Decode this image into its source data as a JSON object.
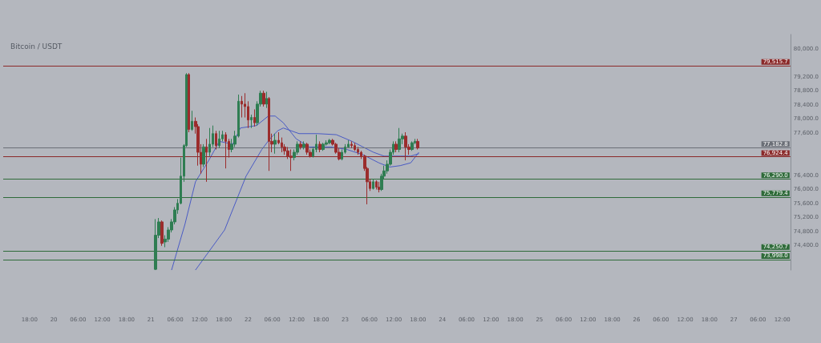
{
  "chart_data": {
    "type": "candlestick",
    "title": "Bitcoin / USDT",
    "x": [
      "--08-21T01:06",
      "--08-21T01:54",
      "--08-21T02:42",
      "--08-21T03:30",
      "--08-21T04:18",
      "--08-21T05:06",
      "--08-21T05:54",
      "--08-21T06:36",
      "--08-21T07:24",
      "--08-21T08:12",
      "--08-21T08:48",
      "--08-21T09:24",
      "--08-21T10:12",
      "--08-21T11:00",
      "--08-21T11:36",
      "--08-21T12:18",
      "--08-21T13:00",
      "--08-21T13:42",
      "--08-21T14:30",
      "--08-21T15:18",
      "--08-21T16:06",
      "--08-21T16:54",
      "--08-21T17:42",
      "--08-21T18:30",
      "--08-21T19:18",
      "--08-21T20:00",
      "--08-21T20:48",
      "--08-21T21:36",
      "--08-21T22:24",
      "--08-21T23:12",
      "--08-22T00:00",
      "--08-22T00:48",
      "--08-22T01:36",
      "--08-22T02:18",
      "--08-22T03:06",
      "--08-22T03:54",
      "--08-22T04:36",
      "--08-22T05:12",
      "--08-22T05:54",
      "--08-22T06:42",
      "--08-22T07:30",
      "--08-22T08:18",
      "--08-22T09:00",
      "--08-22T09:48",
      "--08-22T10:36",
      "--08-22T11:24",
      "--08-22T12:12",
      "--08-22T13:00",
      "--08-22T13:48",
      "--08-22T14:36",
      "--08-22T15:24",
      "--08-22T16:06",
      "--08-22T16:54",
      "--08-22T17:42",
      "--08-22T18:30",
      "--08-22T19:18",
      "--08-22T20:06",
      "--08-22T20:54",
      "--08-22T21:42",
      "--08-22T22:30",
      "--08-22T23:12",
      "--08-23T00:00",
      "--08-23T00:48",
      "--08-23T01:36",
      "--08-23T02:24",
      "--08-23T03:12",
      "--08-23T04:00",
      "--08-23T04:48",
      "--08-23T05:24",
      "--08-23T06:06",
      "--08-23T06:54",
      "--08-23T07:42",
      "--08-23T08:18",
      "--08-23T09:00",
      "--08-23T09:36",
      "--08-23T10:24",
      "--08-23T11:12",
      "--08-23T11:54",
      "--08-23T12:36",
      "--08-23T13:24",
      "--08-23T14:12",
      "--08-23T14:54",
      "--08-23T15:42",
      "--08-23T16:30",
      "--08-23T17:12",
      "--08-23T17:54"
    ],
    "ohlc": [
      [
        73720,
        75150,
        73700,
        74690
      ],
      [
        74690,
        75180,
        74610,
        75070
      ],
      [
        75070,
        75110,
        74390,
        74460
      ],
      [
        74500,
        74690,
        74350,
        74580
      ],
      [
        74580,
        74920,
        74500,
        74840
      ],
      [
        74840,
        75150,
        74770,
        75070
      ],
      [
        75070,
        75490,
        75000,
        75410
      ],
      [
        75410,
        75720,
        75300,
        75600
      ],
      [
        75600,
        76900,
        75570,
        76370
      ],
      [
        76370,
        77280,
        76210,
        77240
      ],
      [
        77240,
        79300,
        77200,
        79260
      ],
      [
        79260,
        79300,
        77620,
        77700
      ],
      [
        77700,
        78230,
        77660,
        77930
      ],
      [
        77930,
        78040,
        77580,
        77780
      ],
      [
        77780,
        77850,
        76670,
        77050
      ],
      [
        77050,
        77280,
        76440,
        76710
      ],
      [
        76710,
        77280,
        76630,
        77200
      ],
      [
        77200,
        77430,
        76210,
        77050
      ],
      [
        77050,
        77740,
        76940,
        77280
      ],
      [
        77280,
        77810,
        77200,
        77580
      ],
      [
        77580,
        77660,
        77130,
        77240
      ],
      [
        77240,
        77660,
        77170,
        77430
      ],
      [
        77430,
        77660,
        77360,
        77550
      ],
      [
        77550,
        77620,
        76590,
        77360
      ],
      [
        77360,
        77430,
        76900,
        77130
      ],
      [
        77130,
        77430,
        77050,
        77280
      ],
      [
        77280,
        77660,
        77200,
        77510
      ],
      [
        77510,
        78690,
        77470,
        78500
      ],
      [
        78500,
        78650,
        78040,
        78420
      ],
      [
        78420,
        78730,
        78040,
        78350
      ],
      [
        78350,
        78500,
        77740,
        77970
      ],
      [
        77970,
        78120,
        77740,
        78040
      ],
      [
        78040,
        78270,
        77780,
        77890
      ],
      [
        77890,
        78500,
        77810,
        78420
      ],
      [
        78420,
        78800,
        78350,
        78730
      ],
      [
        78730,
        78800,
        78350,
        78420
      ],
      [
        78420,
        78770,
        78310,
        78580
      ],
      [
        78580,
        78620,
        76520,
        77360
      ],
      [
        77360,
        77580,
        77050,
        77280
      ],
      [
        77280,
        77580,
        77010,
        77390
      ],
      [
        77390,
        77620,
        77280,
        77320
      ],
      [
        77320,
        77470,
        77050,
        77200
      ],
      [
        77200,
        77280,
        76980,
        77090
      ],
      [
        77090,
        77200,
        76860,
        76940
      ],
      [
        76940,
        77130,
        76520,
        76900
      ],
      [
        76900,
        77130,
        76820,
        77050
      ],
      [
        77050,
        77360,
        76980,
        77280
      ],
      [
        77280,
        77360,
        77130,
        77200
      ],
      [
        77200,
        77360,
        77130,
        77280
      ],
      [
        77280,
        77320,
        76980,
        77050
      ],
      [
        77050,
        77130,
        76900,
        76940
      ],
      [
        76940,
        77200,
        76900,
        77130
      ],
      [
        77130,
        77550,
        77050,
        77280
      ],
      [
        77280,
        77360,
        77050,
        77130
      ],
      [
        77130,
        77320,
        77090,
        77280
      ],
      [
        77280,
        77390,
        77240,
        77320
      ],
      [
        77320,
        77430,
        77280,
        77390
      ],
      [
        77390,
        77430,
        77240,
        77280
      ],
      [
        77280,
        77320,
        77010,
        77050
      ],
      [
        77050,
        77170,
        76820,
        76860
      ],
      [
        76860,
        77130,
        76820,
        77050
      ],
      [
        77050,
        77280,
        77010,
        77200
      ],
      [
        77200,
        77390,
        77200,
        77280
      ],
      [
        77280,
        77360,
        77170,
        77240
      ],
      [
        77240,
        77320,
        77090,
        77130
      ],
      [
        77130,
        77200,
        76980,
        77050
      ],
      [
        77050,
        77090,
        76860,
        76940
      ],
      [
        76940,
        76980,
        76520,
        76590
      ],
      [
        76590,
        76630,
        75570,
        76210
      ],
      [
        76210,
        76290,
        75950,
        76020
      ],
      [
        76020,
        76290,
        75990,
        76210
      ],
      [
        76210,
        76250,
        75990,
        76060
      ],
      [
        76060,
        76210,
        75910,
        75990
      ],
      [
        75990,
        76440,
        75950,
        76370
      ],
      [
        76370,
        76670,
        76290,
        76520
      ],
      [
        76520,
        76820,
        76440,
        76710
      ],
      [
        76710,
        77130,
        76670,
        77050
      ],
      [
        77050,
        77360,
        76980,
        77280
      ],
      [
        77280,
        77360,
        77050,
        77130
      ],
      [
        77130,
        77740,
        77050,
        77430
      ],
      [
        77430,
        77580,
        77280,
        77510
      ],
      [
        77510,
        77620,
        76820,
        77200
      ],
      [
        77200,
        77280,
        76980,
        77130
      ],
      [
        77130,
        77360,
        77090,
        77320
      ],
      [
        77320,
        77430,
        77280,
        77360
      ],
      [
        77360,
        77430,
        77130,
        77170
      ]
    ],
    "colors": [
      "#2f7d52",
      "#2f7d52",
      "#9b2c2c",
      "#2f7d52",
      "#2f7d52",
      "#2f7d52",
      "#2f7d52",
      "#2f7d52",
      "#2f7d52",
      "#2f7d52",
      "#2f7d52",
      "#9b2c2c",
      "#2f7d52",
      "#9b2c2c",
      "#9b2c2c",
      "#9b2c2c",
      "#2f7d52",
      "#9b2c2c",
      "#2f7d52",
      "#2f7d52",
      "#9b2c2c",
      "#2f7d52",
      "#2f7d52",
      "#9b2c2c",
      "#9b2c2c",
      "#2f7d52",
      "#2f7d52",
      "#2f7d52",
      "#9b2c2c",
      "#9b2c2c",
      "#9b2c2c",
      "#2f7d52",
      "#9b2c2c",
      "#2f7d52",
      "#2f7d52",
      "#9b2c2c",
      "#2f7d52",
      "#9b2c2c",
      "#9b2c2c",
      "#2f7d52",
      "#9b2c2c",
      "#9b2c2c",
      "#9b2c2c",
      "#9b2c2c",
      "#9b2c2c",
      "#2f7d52",
      "#2f7d52",
      "#9b2c2c",
      "#2f7d52",
      "#9b2c2c",
      "#9b2c2c",
      "#2f7d52",
      "#2f7d52",
      "#9b2c2c",
      "#2f7d52",
      "#2f7d52",
      "#2f7d52",
      "#9b2c2c",
      "#9b2c2c",
      "#9b2c2c",
      "#2f7d52",
      "#2f7d52",
      "#2f7d52",
      "#9b2c2c",
      "#9b2c2c",
      "#9b2c2c",
      "#9b2c2c",
      "#9b2c2c",
      "#9b2c2c",
      "#9b2c2c",
      "#2f7d52",
      "#9b2c2c",
      "#9b2c2c",
      "#2f7d52",
      "#2f7d52",
      "#2f7d52",
      "#2f7d52",
      "#2f7d52",
      "#9b2c2c",
      "#2f7d52",
      "#2f7d52",
      "#9b2c2c",
      "#9b2c2c",
      "#2f7d52",
      "#2f7d52",
      "#9b2c2c"
    ],
    "series": [
      {
        "type": "line",
        "color": "#4a5bc4",
        "x": [
          "--08-21T05:06",
          "--08-21T08:24",
          "--08-21T11:00",
          "--08-21T14:18",
          "--08-21T16:54",
          "--08-21T20:12",
          "--08-21T22:06",
          "--08-22T02:06",
          "--08-22T05:00",
          "--08-22T06:42",
          "--08-22T08:42",
          "--08-22T11:54",
          "--08-22T15:12",
          "--08-22T20:30",
          "--08-23T00:24",
          "--08-23T04:24",
          "--08-23T08:18",
          "--08-23T11:00",
          "--08-23T13:36",
          "--08-23T16:12",
          "--08-23T18:12"
        ],
        "values": [
          73700,
          75000,
          76210,
          76820,
          77360,
          77280,
          77740,
          77810,
          78080,
          78080,
          77890,
          77430,
          77200,
          77200,
          77130,
          76980,
          76750,
          76630,
          76670,
          76750,
          77050
        ]
      },
      {
        "type": "line",
        "color": "#4a5bc4",
        "x": [
          "--08-21T11:00",
          "--08-21T18:12",
          "--08-21T23:30",
          "--08-22T03:24",
          "--08-22T05:24",
          "--08-22T07:18",
          "--08-22T08:42",
          "--08-22T12:36",
          "--08-22T17:12",
          "--08-22T21:48",
          "--08-23T01:42",
          "--08-23T04:24",
          "--08-23T07:00",
          "--08-23T09:36",
          "--08-23T13:36",
          "--08-23T16:12",
          "--08-23T18:12"
        ],
        "values": [
          73700,
          74840,
          76370,
          77130,
          77430,
          77660,
          77740,
          77580,
          77580,
          77550,
          77360,
          77200,
          77050,
          76940,
          76940,
          76940,
          77010
        ]
      }
    ],
    "ref_lines": [
      {
        "axis": "y",
        "value": 79515.7,
        "label": "79,515.7",
        "color": "#8b2a2a"
      },
      {
        "axis": "y",
        "value": 77182.8,
        "label": "77,182.8",
        "color": "#6b6f77"
      },
      {
        "axis": "y",
        "value": 76924.4,
        "label": "76,924.4",
        "color": "#8b2a2a"
      },
      {
        "axis": "y",
        "value": 76290.0,
        "label": "76,290.0",
        "color": "#2f6b3a"
      },
      {
        "axis": "y",
        "value": 75779.4,
        "label": "75,779.4",
        "color": "#2f6b3a"
      },
      {
        "axis": "y",
        "value": 74250.7,
        "label": "74,250.7",
        "color": "#2f6b3a"
      },
      {
        "axis": "y",
        "value": 73998.0,
        "label": "73,998.0",
        "color": "#2f6b3a"
      }
    ],
    "xlim": [
      "--08-19T11:30",
      "--08-27T14:00"
    ],
    "xticks": [
      {
        "value": "--08-19T18:00",
        "label": "18:00"
      },
      {
        "value": "--08-20T00:00",
        "label": "20"
      },
      {
        "value": "--08-20T06:00",
        "label": "06:00"
      },
      {
        "value": "--08-20T12:00",
        "label": "12:00"
      },
      {
        "value": "--08-20T18:00",
        "label": "18:00"
      },
      {
        "value": "--08-21T00:00",
        "label": "21"
      },
      {
        "value": "--08-21T06:00",
        "label": "06:00"
      },
      {
        "value": "--08-21T12:00",
        "label": "12:00"
      },
      {
        "value": "--08-21T18:00",
        "label": "18:00"
      },
      {
        "value": "--08-22T00:00",
        "label": "22"
      },
      {
        "value": "--08-22T06:00",
        "label": "06:00"
      },
      {
        "value": "--08-22T12:00",
        "label": "12:00"
      },
      {
        "value": "--08-22T18:00",
        "label": "18:00"
      },
      {
        "value": "--08-23T00:00",
        "label": "23"
      },
      {
        "value": "--08-23T06:00",
        "label": "06:00"
      },
      {
        "value": "--08-23T12:00",
        "label": "12:00"
      },
      {
        "value": "--08-23T18:00",
        "label": "18:00"
      },
      {
        "value": "--08-24T00:00",
        "label": "24"
      },
      {
        "value": "--08-24T06:00",
        "label": "06:00"
      },
      {
        "value": "--08-24T12:00",
        "label": "12:00"
      },
      {
        "value": "--08-24T18:00",
        "label": "18:00"
      },
      {
        "value": "--08-25T00:00",
        "label": "25"
      },
      {
        "value": "--08-25T06:00",
        "label": "06:00"
      },
      {
        "value": "--08-25T12:00",
        "label": "12:00"
      },
      {
        "value": "--08-25T18:00",
        "label": "18:00"
      },
      {
        "value": "--08-26T00:00",
        "label": "26"
      },
      {
        "value": "--08-26T06:00",
        "label": "06:00"
      },
      {
        "value": "--08-26T12:00",
        "label": "12:00"
      },
      {
        "value": "--08-26T18:00",
        "label": "18:00"
      },
      {
        "value": "--08-27T00:00",
        "label": "27"
      },
      {
        "value": "--08-27T06:00",
        "label": "06:00"
      },
      {
        "value": "--08-27T12:00",
        "label": "12:00"
      }
    ],
    "ylim": [
      73700,
      80400
    ],
    "yticks": [
      {
        "value": 74400,
        "label": "74,400.0"
      },
      {
        "value": 74800,
        "label": "74,800.0"
      },
      {
        "value": 75200,
        "label": "75,200.0"
      },
      {
        "value": 75600,
        "label": "75,600.0"
      },
      {
        "value": 76000,
        "label": "76,000.0"
      },
      {
        "value": 76400,
        "label": "76,400.0"
      },
      {
        "value": 77600,
        "label": "77,600.0"
      },
      {
        "value": 78000,
        "label": "78,000.0"
      },
      {
        "value": 78400,
        "label": "78,400.0"
      },
      {
        "value": 78800,
        "label": "78,800.0"
      },
      {
        "value": 79200,
        "label": "79,200.0"
      },
      {
        "value": 80000,
        "label": "80,000.0"
      }
    ],
    "grid": false
  }
}
